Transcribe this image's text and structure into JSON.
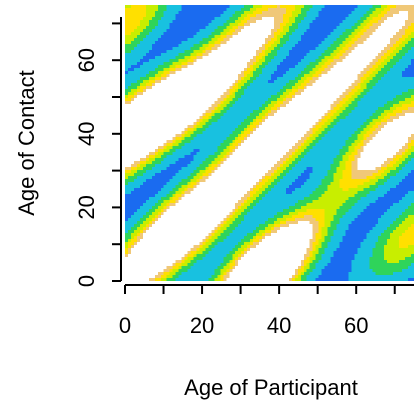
{
  "chart_data": {
    "type": "heatmap",
    "title": "",
    "xlabel": "Age of Participant",
    "ylabel": "Age of Contact",
    "xlim": [
      0,
      75
    ],
    "ylim": [
      0,
      75
    ],
    "x_ticks": [
      0,
      20,
      40,
      60
    ],
    "y_ticks": [
      0,
      20,
      40,
      60
    ],
    "x_minor_ticks": [
      10,
      30,
      50,
      70
    ],
    "y_minor_ticks": [
      10,
      30,
      50,
      70
    ],
    "grid": false,
    "legend": "none",
    "color_scale": [
      "#0a1fd6",
      "#1a6bf0",
      "#18c1e0",
      "#2fd45a",
      "#c8ee00",
      "#ffe000",
      "#f0c878",
      "#ffffff"
    ],
    "hotspots": [
      {
        "x": 0,
        "y": 40,
        "intensity": 0.95
      },
      {
        "x": 8,
        "y": 45,
        "intensity": 1.0
      },
      {
        "x": 20,
        "y": 52,
        "intensity": 0.95
      },
      {
        "x": 0,
        "y": 70,
        "intensity": 0.55
      },
      {
        "x": 14,
        "y": 14,
        "intensity": 0.95
      },
      {
        "x": 4,
        "y": 4,
        "intensity": 0.45
      },
      {
        "x": 24,
        "y": 22,
        "intensity": 0.55
      },
      {
        "x": 38,
        "y": 38,
        "intensity": 0.95
      },
      {
        "x": 37,
        "y": 5,
        "intensity": 1.0
      },
      {
        "x": 35,
        "y": 0,
        "intensity": 0.8
      },
      {
        "x": 34,
        "y": 68,
        "intensity": 0.55
      },
      {
        "x": 54,
        "y": 53,
        "intensity": 0.55
      },
      {
        "x": 68,
        "y": 38,
        "intensity": 0.85
      },
      {
        "x": 70,
        "y": 70,
        "intensity": 0.5
      },
      {
        "x": 75,
        "y": 13,
        "intensity": 0.5
      }
    ]
  }
}
